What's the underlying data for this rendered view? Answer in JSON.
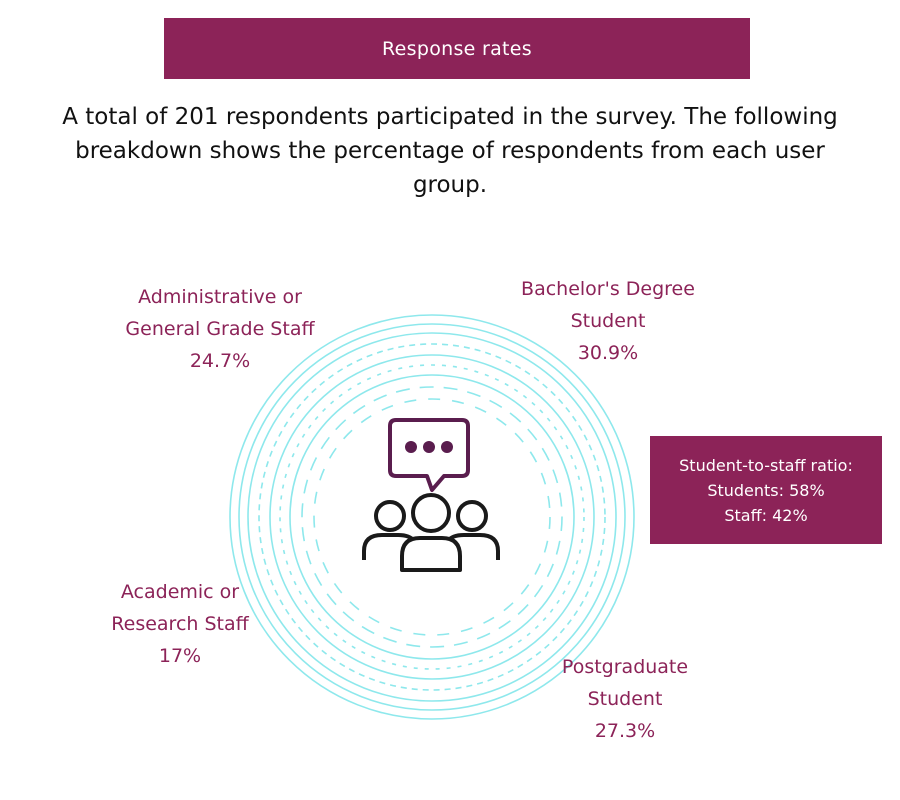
{
  "header": {
    "title": "Response rates"
  },
  "intro": {
    "text": "A total of 201 respondents participated in the survey. The following breakdown shows the percentage of respondents from each user group."
  },
  "groups": [
    {
      "line1": "Administrative or",
      "line2": "General Grade Staff",
      "percent_label": "24.7%",
      "value": 24.7
    },
    {
      "line1": "Bachelor's Degree",
      "line2": "Student",
      "percent_label": "30.9%",
      "value": 30.9
    },
    {
      "line1": "Academic or",
      "line2": "Research Staff",
      "percent_label": "17%",
      "value": 17
    },
    {
      "line1": "Postgraduate",
      "line2": "Student",
      "percent_label": "27.3%",
      "value": 27.3
    }
  ],
  "ratio": {
    "title": "Student-to-staff ratio:",
    "students": "Students: 58%",
    "staff": "Staff: 42%"
  },
  "colors": {
    "accent": "#8c2358",
    "ring": "#8ee8ec",
    "icon_dark": "#1a1a1a",
    "icon_bubble": "#5a1d4e"
  },
  "icon": "group-chat-icon"
}
